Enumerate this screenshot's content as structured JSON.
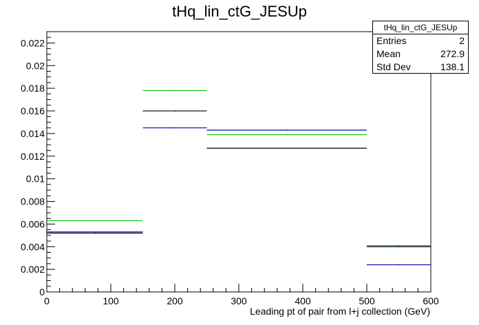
{
  "chart_data": {
    "type": "histogram",
    "title": "tHq_lin_ctG_JESUp",
    "xlabel": "Leading pt of pair from l+j collection (GeV)",
    "ylabel": "",
    "xlim": [
      0,
      600
    ],
    "ylim": [
      0,
      0.023
    ],
    "x_ticks": [
      0,
      100,
      200,
      300,
      400,
      500,
      600
    ],
    "y_ticks": [
      0,
      0.002,
      0.004,
      0.006,
      0.008,
      0.01,
      0.012,
      0.014,
      0.016,
      0.018,
      0.02,
      0.022
    ],
    "x_tick_labels": [
      "0",
      "100",
      "200",
      "300",
      "400",
      "500",
      "600"
    ],
    "y_tick_labels": [
      "0",
      "0.002",
      "0.004",
      "0.006",
      "0.008",
      "0.01",
      "0.012",
      "0.014",
      "0.016",
      "0.018",
      "0.02",
      "0.022"
    ],
    "bin_edges": [
      0,
      150,
      250,
      500,
      600
    ],
    "series": [
      {
        "color": "#000000",
        "values": [
          0.0052,
          0.016,
          0.0127,
          0.004
        ]
      },
      {
        "color": "#00cc00",
        "values": [
          0.0063,
          0.0178,
          0.0139,
          0.0041
        ]
      },
      {
        "color": "#0000aa",
        "values": [
          0.0053,
          0.0145,
          0.0143,
          0.0024
        ]
      }
    ],
    "stats": {
      "name": "tHq_lin_ctG_JESUp",
      "rows": [
        {
          "label": "Entries",
          "value": "2"
        },
        {
          "label": "Mean",
          "value": "272.9"
        },
        {
          "label": "Std Dev",
          "value": "138.1"
        }
      ]
    }
  }
}
